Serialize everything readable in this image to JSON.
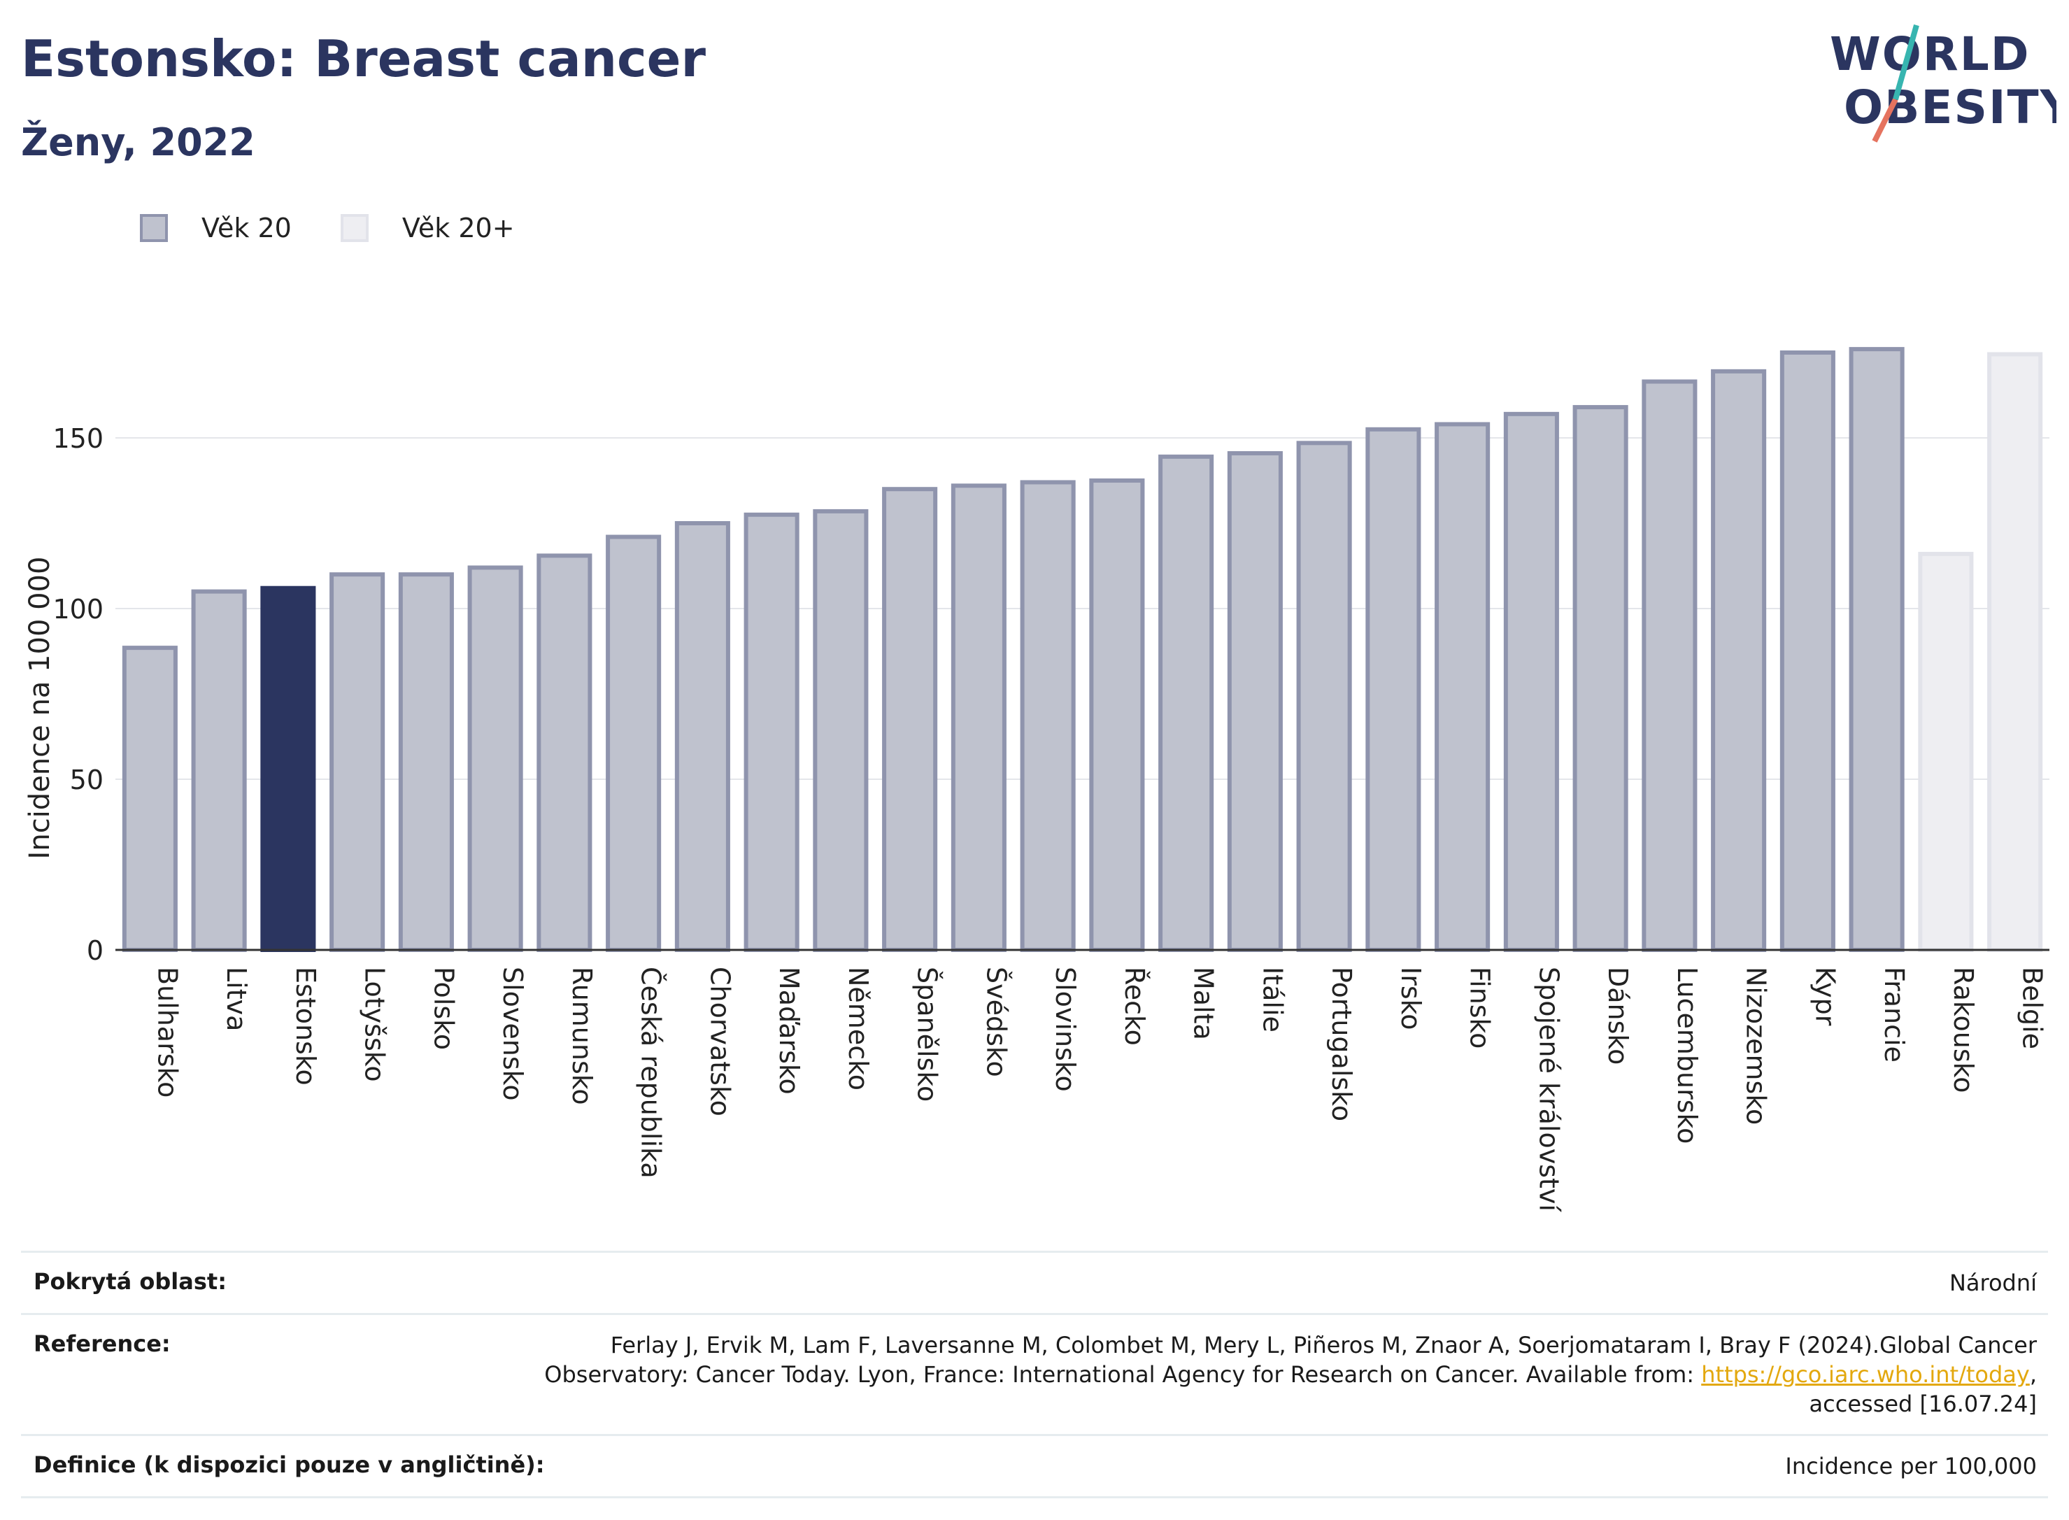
{
  "header": {
    "title": "Estonsko: Breast cancer",
    "subtitle": "Ženy, 2022"
  },
  "logo": {
    "line1": "WORLD",
    "line2": "OBESITY"
  },
  "legend": [
    {
      "label": "Věk 20",
      "color": "#bfc2ce",
      "border": "#8f94ad"
    },
    {
      "label": "Věk 20+",
      "color": "#eeeef2",
      "border": "#e2e3ea"
    }
  ],
  "colors": {
    "highlight": "#2b3560",
    "bar": "#bfc2ce",
    "bar_border": "#8f94ad",
    "bar_light": "#eeeef2",
    "bar_light_border": "#e2e3ea",
    "link": "#e3a80e"
  },
  "chart_data": {
    "type": "bar",
    "categories": [
      "Bulharsko",
      "Litva",
      "Estonsko",
      "Lotyšsko",
      "Polsko",
      "Slovensko",
      "Rumunsko",
      "Česká republika",
      "Chorvatsko",
      "Maďarsko",
      "Německo",
      "Španělsko",
      "Švédsko",
      "Slovinsko",
      "Řecko",
      "Malta",
      "Itálie",
      "Portugalsko",
      "Irsko",
      "Finsko",
      "Spojené království",
      "Dánsko",
      "Lucembursko",
      "Nizozemsko",
      "Kypr",
      "Francie",
      "Rakousko",
      "Belgie"
    ],
    "values": [
      88.5,
      105,
      106,
      110,
      110,
      112,
      115.5,
      121,
      125,
      127.5,
      128.5,
      135,
      136,
      137,
      137.5,
      144.5,
      145.5,
      148.5,
      152.5,
      154,
      157,
      159,
      166.5,
      169.5,
      175,
      176,
      116,
      174.5
    ],
    "series_group": [
      "Věk 20",
      "Věk 20",
      "Věk 20",
      "Věk 20",
      "Věk 20",
      "Věk 20",
      "Věk 20",
      "Věk 20",
      "Věk 20",
      "Věk 20",
      "Věk 20",
      "Věk 20",
      "Věk 20",
      "Věk 20",
      "Věk 20",
      "Věk 20",
      "Věk 20",
      "Věk 20",
      "Věk 20",
      "Věk 20",
      "Věk 20",
      "Věk 20",
      "Věk 20",
      "Věk 20",
      "Věk 20",
      "Věk 20",
      "Věk 20+",
      "Věk 20+"
    ],
    "highlight": "Estonsko",
    "ylabel": "Incidence na 100 000",
    "ylim": [
      0,
      180
    ],
    "yticks": [
      0,
      50,
      100,
      150
    ],
    "grid": true,
    "legend_position": "top-left"
  },
  "footer": {
    "coverage_label": "Pokrytá oblast:",
    "coverage_value": "Národní",
    "reference_label": "Reference:",
    "reference_line1": "Ferlay J, Ervik M, Lam F, Laversanne M, Colombet M, Mery L, Piñeros M, Znaor A, Soerjomataram I, Bray F (2024).Global Cancer",
    "reference_line2_pre": "Observatory: Cancer Today. Lyon, France: International Agency for Research on Cancer. Available from: ",
    "reference_link": "https://gco.iarc.who.int/today",
    "reference_line2_post": ",",
    "reference_line3": "accessed [16.07.24]",
    "definition_label": "Definice (k dispozici pouze v angličtině):",
    "definition_value": "Incidence per 100,000"
  }
}
